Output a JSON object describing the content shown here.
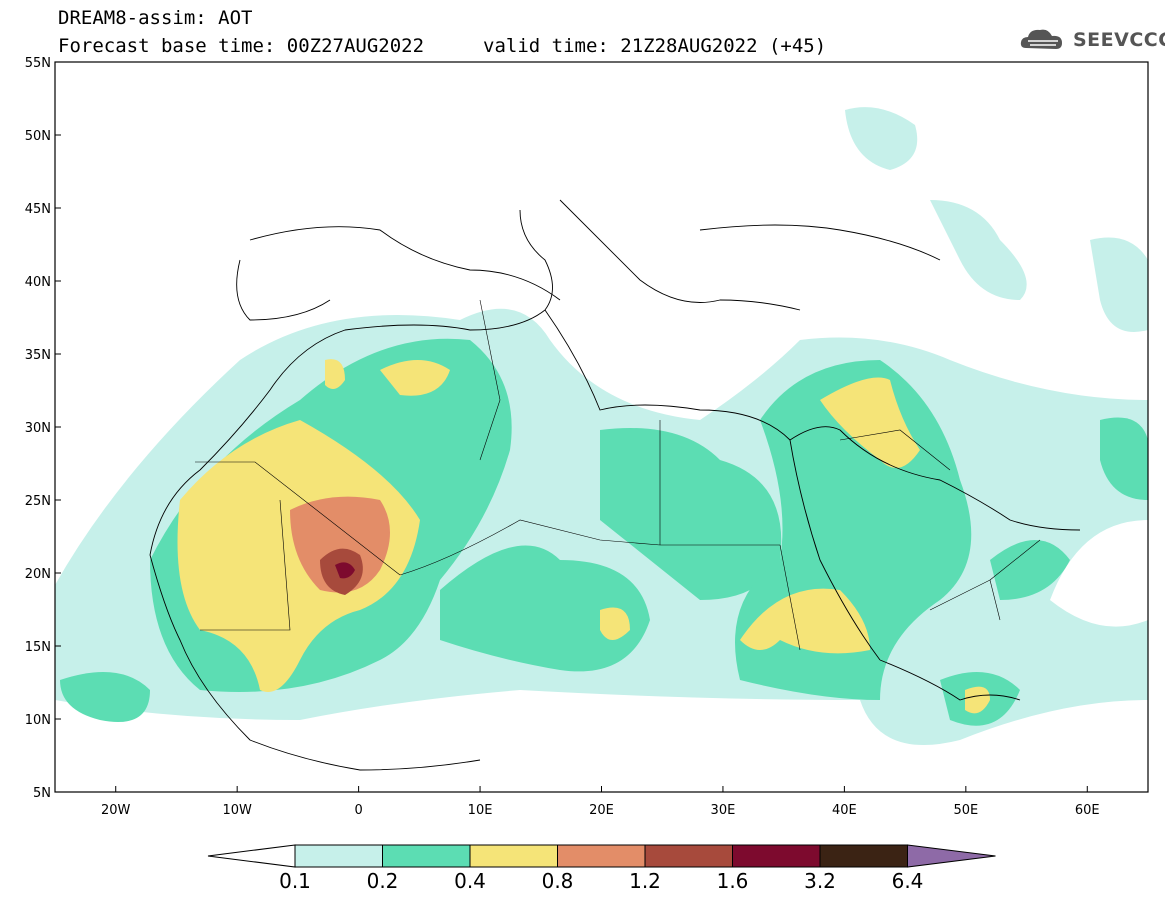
{
  "title": {
    "line1": "DREAM8-assim: AOT",
    "line2": "Forecast base time: 00Z27AUG2022",
    "valid": "valid time: 21Z28AUG2022 (+45)"
  },
  "logo": {
    "text": "SEEVCCC",
    "icon": "cloud-logo-icon"
  },
  "map": {
    "projection": "lat-lon",
    "lon_range": [
      -25,
      65
    ],
    "lat_range": [
      5,
      55
    ],
    "lat_ticks": [
      {
        "value": 55,
        "label": "55N"
      },
      {
        "value": 50,
        "label": "50N"
      },
      {
        "value": 45,
        "label": "45N"
      },
      {
        "value": 40,
        "label": "40N"
      },
      {
        "value": 35,
        "label": "35N"
      },
      {
        "value": 30,
        "label": "30N"
      },
      {
        "value": 25,
        "label": "25N"
      },
      {
        "value": 20,
        "label": "20N"
      },
      {
        "value": 15,
        "label": "15N"
      },
      {
        "value": 10,
        "label": "10N"
      },
      {
        "value": 5,
        "label": "5N"
      }
    ],
    "lon_ticks": [
      {
        "value": -20,
        "label": "20W"
      },
      {
        "value": -10,
        "label": "10W"
      },
      {
        "value": 0,
        "label": "0"
      },
      {
        "value": 10,
        "label": "10E"
      },
      {
        "value": 20,
        "label": "20E"
      },
      {
        "value": 30,
        "label": "30E"
      },
      {
        "value": 40,
        "label": "40E"
      },
      {
        "value": 50,
        "label": "50E"
      },
      {
        "value": 60,
        "label": "60E"
      }
    ]
  },
  "colorbar": {
    "levels": [
      "0.1",
      "0.2",
      "0.4",
      "0.8",
      "1.2",
      "1.6",
      "3.2",
      "6.4"
    ],
    "colors": [
      "#ffffff",
      "#c6f0ea",
      "#5cddb3",
      "#f5e478",
      "#e38d68",
      "#a74a3c",
      "#7d0a2e",
      "#3b2314",
      "#8e6aa7"
    ]
  }
}
